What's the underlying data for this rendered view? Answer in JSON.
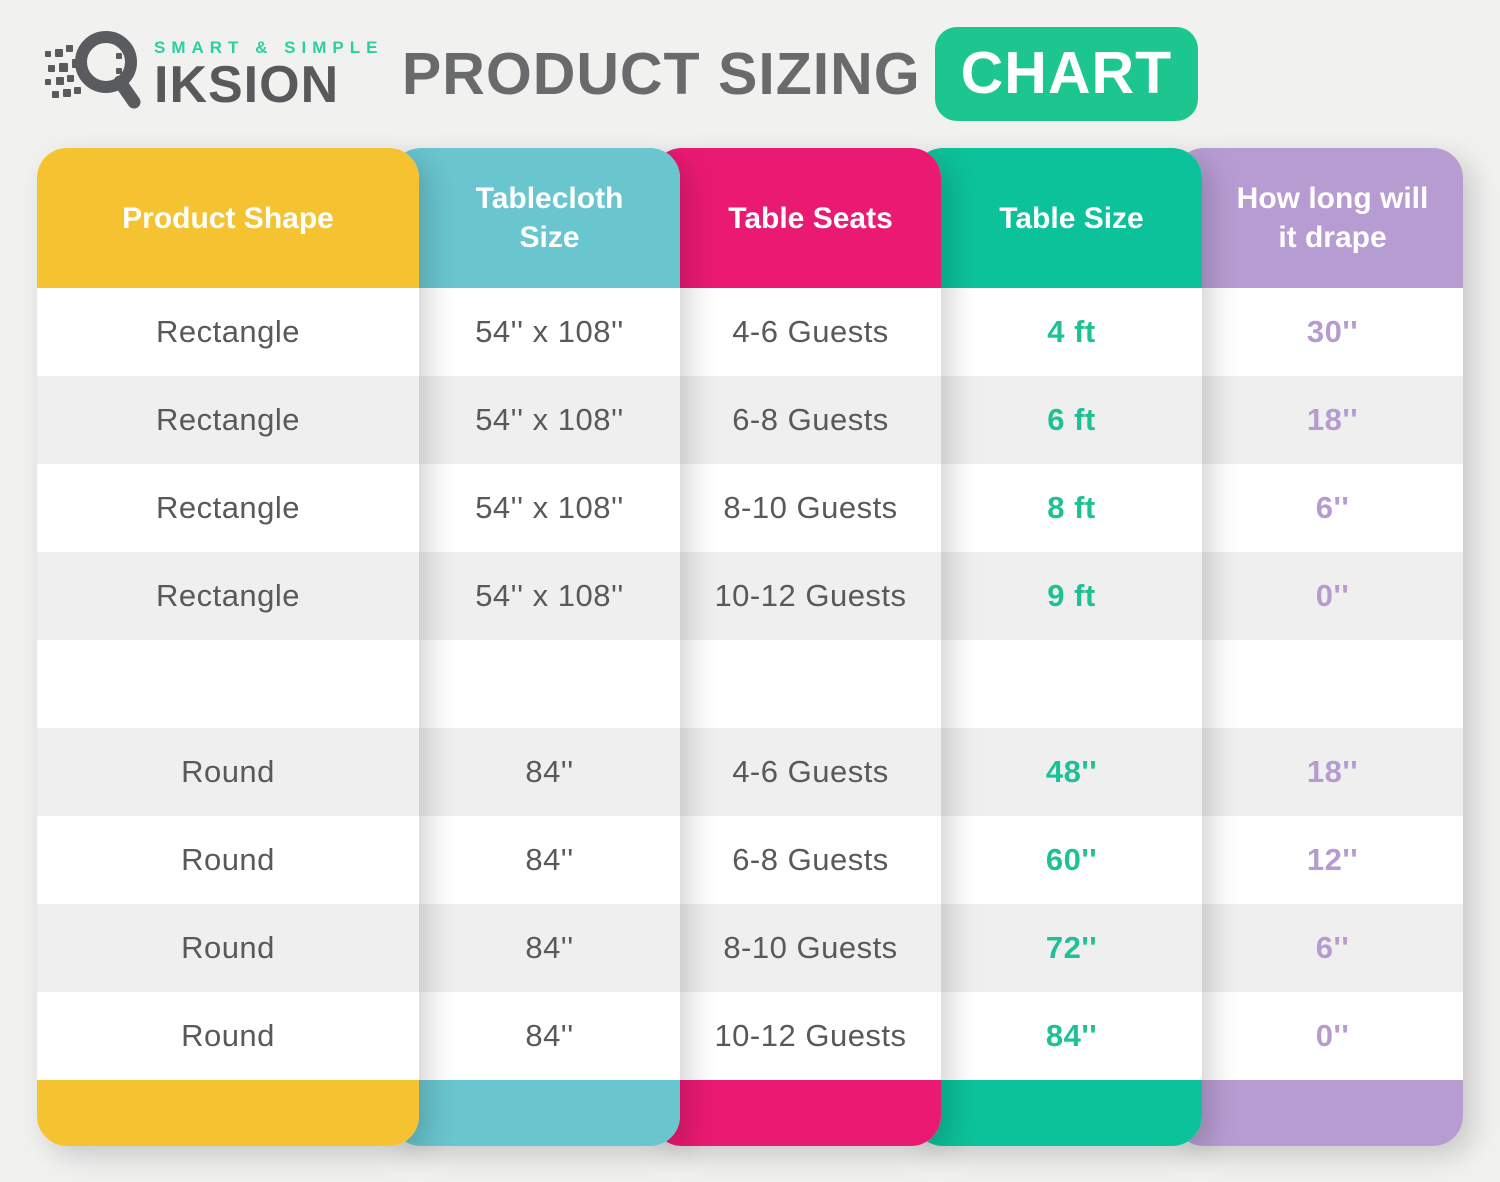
{
  "page_background": "#f1f1f0",
  "logo": {
    "icon": "qiksion-q-speed-icon",
    "tagline": "SMART & SIMPLE",
    "tagline_color": "#2bcfa1",
    "brand": "IKSION",
    "brand_color": "#58595b"
  },
  "title": {
    "prefix": "PRODUCT SIZING",
    "prefix_color": "#696a6c",
    "highlight": "CHART",
    "highlight_bg": "#1ec68f",
    "highlight_color": "#ffffff"
  },
  "chart_data": {
    "type": "table",
    "title": "Product Sizing Chart",
    "row_alt_color": "#efefef",
    "row_base_color": "#ffffff",
    "columns": [
      {
        "label": "Product Shape",
        "header_color": "#f5c331",
        "value_color": "#58595b",
        "value_weight": "normal"
      },
      {
        "label": "Tablecloth Size",
        "header_color": "#69c5ce",
        "value_color": "#58595b",
        "value_weight": "normal"
      },
      {
        "label": "Table Seats",
        "header_color": "#ea1a72",
        "value_color": "#58595b",
        "value_weight": "normal"
      },
      {
        "label": "Table Size",
        "header_color": "#0cc29a",
        "value_color": "#1ec195",
        "value_weight": "bold"
      },
      {
        "label": "How long will it drape",
        "header_color": "#b79cd2",
        "value_color": "#b79bd0",
        "value_weight": "bold"
      }
    ],
    "rows": [
      [
        "Rectangle",
        "54'' x 108''",
        "4-6 Guests",
        "4 ft",
        "30''"
      ],
      [
        "Rectangle",
        "54'' x 108''",
        "6-8 Guests",
        "6 ft",
        "18''"
      ],
      [
        "Rectangle",
        "54'' x 108''",
        "8-10 Guests",
        "8 ft",
        "6''"
      ],
      [
        "Rectangle",
        "54'' x 108''",
        "10-12 Guests",
        "9 ft",
        "0''"
      ],
      [
        "",
        "",
        "",
        "",
        ""
      ],
      [
        "Round",
        "84''",
        "4-6 Guests",
        "48''",
        "18''"
      ],
      [
        "Round",
        "84''",
        "6-8 Guests",
        "60''",
        "12''"
      ],
      [
        "Round",
        "84''",
        "8-10 Guests",
        "72''",
        "6''"
      ],
      [
        "Round",
        "84''",
        "10-12 Guests",
        "84''",
        "0''"
      ]
    ]
  }
}
